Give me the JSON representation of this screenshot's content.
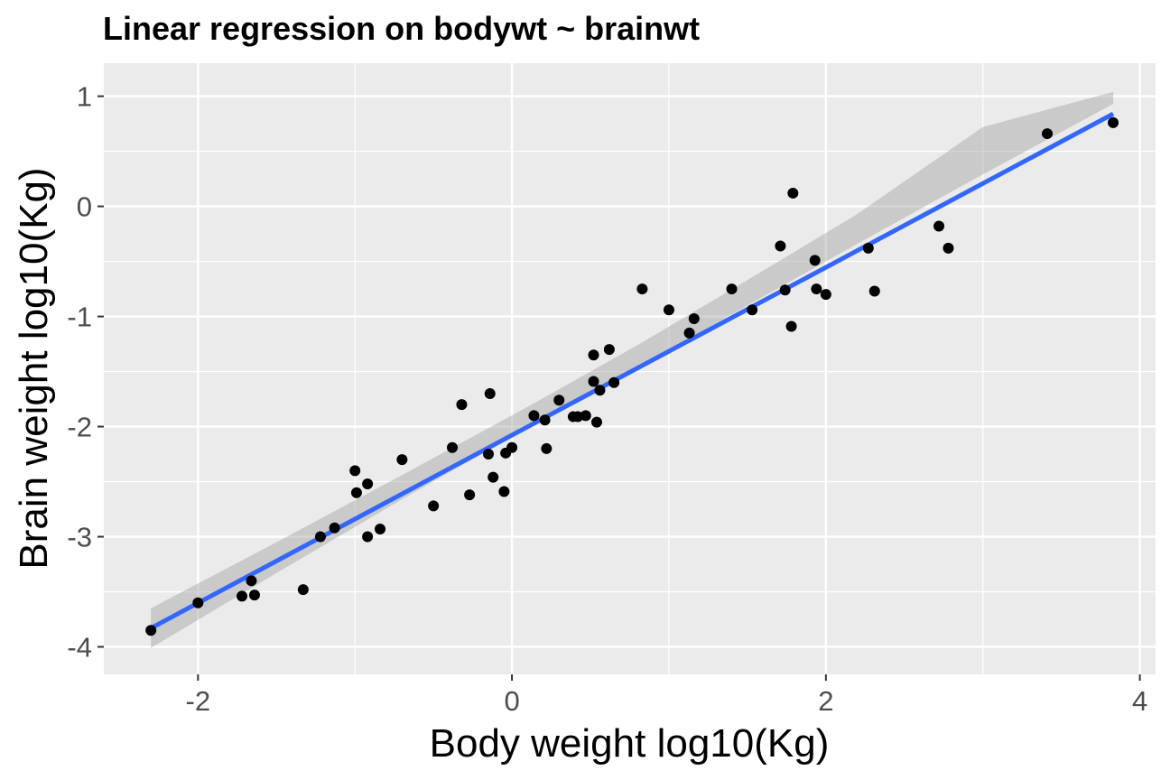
{
  "chart_data": {
    "type": "scatter",
    "title": "Linear regression on bodywt ~ brainwt",
    "xlabel": "Body weight log10(Kg)",
    "ylabel": "Brain weight log10(Kg)",
    "xlim": [
      -2.6,
      4.1
    ],
    "ylim": [
      -4.25,
      1.3
    ],
    "xticks": [
      -2,
      0,
      2,
      4
    ],
    "xtick_labels": [
      "-2",
      "0",
      "2",
      "4"
    ],
    "yticks": [
      -4,
      -3,
      -2,
      -1,
      0,
      1
    ],
    "ytick_labels": [
      "-4",
      "-3",
      "-2",
      "-1",
      "0",
      "1"
    ],
    "grid": true,
    "colors": {
      "panel_background": "#ebebeb",
      "grid_line": "#ffffff",
      "point": "#000000",
      "fit_line": "#3366ff",
      "confidence_band": "#999999"
    },
    "points": [
      {
        "x": -2.3,
        "y": -3.85
      },
      {
        "x": -2.0,
        "y": -3.6
      },
      {
        "x": -1.72,
        "y": -3.54
      },
      {
        "x": -1.66,
        "y": -3.4
      },
      {
        "x": -1.64,
        "y": -3.53
      },
      {
        "x": -1.33,
        "y": -3.48
      },
      {
        "x": -1.22,
        "y": -3.0
      },
      {
        "x": -1.13,
        "y": -2.92
      },
      {
        "x": -1.0,
        "y": -2.4
      },
      {
        "x": -0.99,
        "y": -2.6
      },
      {
        "x": -0.92,
        "y": -2.52
      },
      {
        "x": -0.92,
        "y": -3.0
      },
      {
        "x": -0.84,
        "y": -2.93
      },
      {
        "x": -0.7,
        "y": -2.3
      },
      {
        "x": -0.5,
        "y": -2.72
      },
      {
        "x": -0.38,
        "y": -2.19
      },
      {
        "x": -0.32,
        "y": -1.8
      },
      {
        "x": -0.27,
        "y": -2.62
      },
      {
        "x": -0.15,
        "y": -2.25
      },
      {
        "x": -0.14,
        "y": -1.7
      },
      {
        "x": -0.12,
        "y": -2.46
      },
      {
        "x": -0.05,
        "y": -2.59
      },
      {
        "x": -0.04,
        "y": -2.24
      },
      {
        "x": 0.0,
        "y": -2.19
      },
      {
        "x": 0.14,
        "y": -1.9
      },
      {
        "x": 0.21,
        "y": -1.94
      },
      {
        "x": 0.22,
        "y": -2.2
      },
      {
        "x": 0.3,
        "y": -1.76
      },
      {
        "x": 0.39,
        "y": -1.91
      },
      {
        "x": 0.42,
        "y": -1.91
      },
      {
        "x": 0.47,
        "y": -1.9
      },
      {
        "x": 0.52,
        "y": -1.59
      },
      {
        "x": 0.52,
        "y": -1.35
      },
      {
        "x": 0.54,
        "y": -1.96
      },
      {
        "x": 0.56,
        "y": -1.67
      },
      {
        "x": 0.62,
        "y": -1.3
      },
      {
        "x": 0.65,
        "y": -1.6
      },
      {
        "x": 0.83,
        "y": -0.75
      },
      {
        "x": 1.0,
        "y": -0.94
      },
      {
        "x": 1.13,
        "y": -1.15
      },
      {
        "x": 1.16,
        "y": -1.02
      },
      {
        "x": 1.4,
        "y": -0.75
      },
      {
        "x": 1.53,
        "y": -0.94
      },
      {
        "x": 1.71,
        "y": -0.36
      },
      {
        "x": 1.74,
        "y": -0.76
      },
      {
        "x": 1.78,
        "y": -1.09
      },
      {
        "x": 1.79,
        "y": 0.12
      },
      {
        "x": 1.93,
        "y": -0.49
      },
      {
        "x": 1.94,
        "y": -0.75
      },
      {
        "x": 2.0,
        "y": -0.8
      },
      {
        "x": 2.27,
        "y": -0.38
      },
      {
        "x": 2.31,
        "y": -0.77
      },
      {
        "x": 2.72,
        "y": -0.18
      },
      {
        "x": 2.78,
        "y": -0.38
      },
      {
        "x": 3.41,
        "y": 0.66
      },
      {
        "x": 3.83,
        "y": 0.76
      }
    ],
    "fit": {
      "x": [
        -2.3,
        3.83
      ],
      "y": [
        -3.83,
        0.84
      ]
    },
    "confidence_band": {
      "x": [
        -2.3,
        -1.5,
        -0.7,
        0.1,
        0.8,
        1.5,
        2.2,
        3.0,
        3.83
      ],
      "lower": [
        -4.01,
        -3.33,
        -2.66,
        -2.01,
        -1.46,
        -0.9,
        -0.34,
        0.29,
        0.93
      ],
      "upper": [
        -3.65,
        -3.05,
        -2.44,
        -1.82,
        -1.26,
        -0.67,
        -0.07,
        0.72,
        1.04
      ]
    }
  }
}
